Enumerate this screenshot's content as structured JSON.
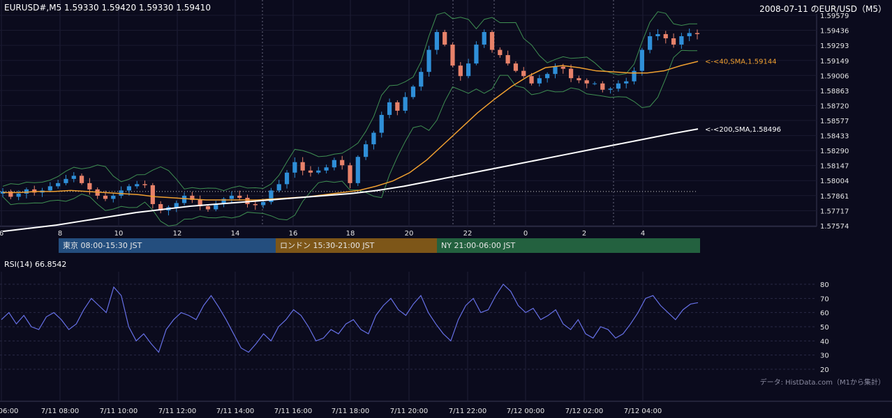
{
  "header": {
    "symbol_info": "EURUSD#,M5 1.59330 1.59420 1.59330 1.59410",
    "title": "2008-07-11 のEUR/USD（M5）"
  },
  "sessions": [
    {
      "label": "東京 08:00-15:30 JST",
      "color": "#244e7e"
    },
    {
      "label": "ロンドン 15:30-21:00 JST",
      "color": "#7d5618"
    },
    {
      "label": "NY 21:00-06:00 JST",
      "color": "#23613f"
    }
  ],
  "rsi": {
    "label": "RSI(14) 66.8542"
  },
  "credit": "データ: HistData.com（M1から集計）",
  "colors": {
    "background": "#0b0b1d",
    "candle_up": "#2f8fd8",
    "candle_down": "#e8826a",
    "bollinger": "#3f8f52",
    "sma40": "#f0a030",
    "sma200": "#ffffff",
    "rsi_line": "#6670e6"
  },
  "chart_data": [
    {
      "type": "candlestick",
      "ylim": [
        1.57574,
        1.59579
      ],
      "y_ticks": [
        "1.59579",
        "1.59436",
        "1.59293",
        "1.59149",
        "1.59006",
        "1.58863",
        "1.58720",
        "1.58577",
        "1.58433",
        "1.58290",
        "1.58147",
        "1.58004",
        "1.57861",
        "1.57717",
        "1.57574"
      ],
      "x_ticks_hour": [
        "6",
        "8",
        "10",
        "12",
        "14",
        "16",
        "18",
        "20",
        "22",
        "0",
        "2",
        "4"
      ],
      "annotations": [
        {
          "text": "<-<40,SMA,1.59144",
          "value": 1.59144,
          "color": "#f0a030"
        },
        {
          "text": "<-<200,SMA,1.58496",
          "value": 1.58496,
          "color": "#ffffff"
        }
      ],
      "dotted_reference": 1.579,
      "close_series": [
        1.579,
        1.5785,
        1.5788,
        1.5792,
        1.5789,
        1.5791,
        1.5795,
        1.5798,
        1.5802,
        1.5805,
        1.5798,
        1.5792,
        1.5786,
        1.5783,
        1.5786,
        1.5791,
        1.5795,
        1.5797,
        1.5796,
        1.5778,
        1.5772,
        1.5775,
        1.5779,
        1.5786,
        1.5782,
        1.5776,
        1.5773,
        1.5778,
        1.5783,
        1.5786,
        1.5784,
        1.5778,
        1.5777,
        1.578,
        1.5791,
        1.5797,
        1.5808,
        1.5818,
        1.581,
        1.5808,
        1.581,
        1.5813,
        1.582,
        1.5815,
        1.5798,
        1.5823,
        1.5835,
        1.5846,
        1.5863,
        1.5875,
        1.5867,
        1.588,
        1.589,
        1.5904,
        1.5925,
        1.5942,
        1.593,
        1.591,
        1.59,
        1.5912,
        1.593,
        1.5942,
        1.5925,
        1.592,
        1.5912,
        1.5905,
        1.59,
        1.5893,
        1.5898,
        1.5902,
        1.5909,
        1.5907,
        1.5898,
        1.5896,
        1.5893,
        1.5893,
        1.5887,
        1.5888,
        1.5893,
        1.5895,
        1.5905,
        1.5925,
        1.5938,
        1.594,
        1.5936,
        1.593,
        1.5938,
        1.5941,
        1.594
      ],
      "sma40_series": [
        1.5789,
        1.5789,
        1.579,
        1.579,
        1.5791,
        1.579,
        1.5789,
        1.5788,
        1.5787,
        1.5785,
        1.5784,
        1.5783,
        1.5782,
        1.5782,
        1.5782,
        1.5782,
        1.5783,
        1.5784,
        1.5785,
        1.5787,
        1.5789,
        1.5791,
        1.5795,
        1.58,
        1.5808,
        1.582,
        1.5835,
        1.585,
        1.5865,
        1.5878,
        1.589,
        1.59,
        1.5908,
        1.591,
        1.5908,
        1.5905,
        1.5904,
        1.5903,
        1.5903,
        1.5905,
        1.591,
        1.5914
      ],
      "sma200_series": [
        1.5752,
        1.5755,
        1.5758,
        1.5762,
        1.5766,
        1.577,
        1.5773,
        1.5776,
        1.5778,
        1.578,
        1.5782,
        1.5784,
        1.5786,
        1.5788,
        1.5791,
        1.5795,
        1.58,
        1.5805,
        1.581,
        1.5815,
        1.582,
        1.5825,
        1.583,
        1.5835,
        1.584,
        1.5845,
        1.58496
      ]
    },
    {
      "type": "line",
      "name": "RSI(14)",
      "ylim": [
        20,
        80
      ],
      "y_ticks": [
        "80",
        "70",
        "60",
        "50",
        "40",
        "30",
        "20"
      ],
      "values": [
        55,
        60,
        52,
        58,
        50,
        48,
        57,
        60,
        55,
        48,
        52,
        62,
        70,
        65,
        60,
        78,
        72,
        50,
        40,
        45,
        38,
        32,
        48,
        55,
        60,
        58,
        55,
        65,
        72,
        64,
        55,
        45,
        35,
        32,
        38,
        45,
        40,
        50,
        55,
        62,
        58,
        50,
        40,
        42,
        48,
        45,
        52,
        55,
        48,
        45,
        58,
        65,
        70,
        62,
        58,
        66,
        72,
        60,
        52,
        45,
        40,
        55,
        65,
        70,
        60,
        62,
        72,
        80,
        75,
        65,
        60,
        63,
        55,
        58,
        62,
        52,
        48,
        55,
        45,
        42,
        50,
        48,
        42,
        45,
        52,
        60,
        70,
        72,
        65,
        60,
        55,
        62,
        66,
        67
      ],
      "x_ticks": [
        "06:00",
        "7/11 08:00",
        "7/11 10:00",
        "7/11 12:00",
        "7/11 14:00",
        "7/11 16:00",
        "7/11 18:00",
        "7/11 20:00",
        "7/11 22:00",
        "7/12 00:00",
        "7/12 02:00",
        "7/12 04:00"
      ]
    }
  ]
}
